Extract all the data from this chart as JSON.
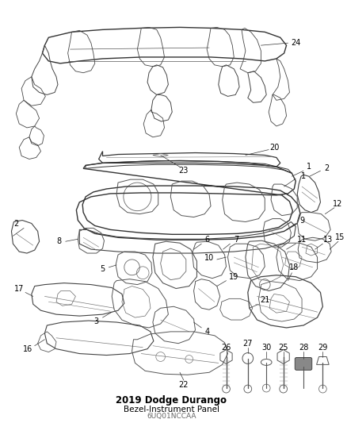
{
  "title": "2019 Dodge Durango",
  "subtitle": "Bezel-Instrument Panel",
  "part_number": "6UQ01NCCAA",
  "bg_color": "#ffffff",
  "line_color": "#333333",
  "text_color": "#000000",
  "fig_width": 4.38,
  "fig_height": 5.33,
  "dpi": 100,
  "label_fontsize": 7.0,
  "title_fontsize": 8.5,
  "subtitle_fontsize": 7.5,
  "pn_fontsize": 6.5
}
